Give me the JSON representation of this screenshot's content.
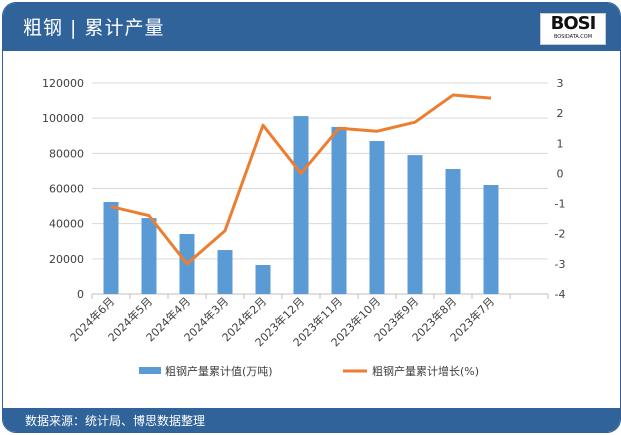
{
  "header": {
    "title": "粗钢 | 累计产量",
    "logo_text": "BOSI",
    "logo_sub": "BOSIDATA.COM"
  },
  "footer": {
    "source": "数据来源：统计局、博思数据整理"
  },
  "chart_data": {
    "type": "bar+line",
    "categories": [
      "2024年6月",
      "2024年5月",
      "2024年4月",
      "2024年3月",
      "2024年2月",
      "2023年12月",
      "2023年11月",
      "2023年10月",
      "2023年9月",
      "2023年8月",
      "2023年7月",
      ""
    ],
    "series": [
      {
        "name": "粗钢产量累计值(万吨)",
        "type": "bar",
        "axis": "left",
        "color": "#5b9bd5",
        "values": [
          52300,
          43200,
          34100,
          25000,
          16500,
          101200,
          95000,
          87000,
          79000,
          71100,
          62000,
          null
        ]
      },
      {
        "name": "粗钢产量累计增长(%)",
        "type": "line",
        "axis": "right",
        "color": "#ed7d31",
        "values": [
          -1.1,
          -1.4,
          -3.0,
          -1.9,
          1.6,
          0.0,
          1.5,
          1.4,
          1.7,
          2.6,
          2.5,
          null
        ]
      }
    ],
    "y_left": {
      "min": 0,
      "max": 120000,
      "ticks": [
        0,
        20000,
        40000,
        60000,
        80000,
        100000,
        120000
      ]
    },
    "y_right": {
      "min": -4,
      "max": 3,
      "ticks": [
        -4,
        -3,
        -2,
        -1,
        0,
        1,
        2,
        3
      ]
    },
    "grid": true,
    "legend": "bottom"
  }
}
